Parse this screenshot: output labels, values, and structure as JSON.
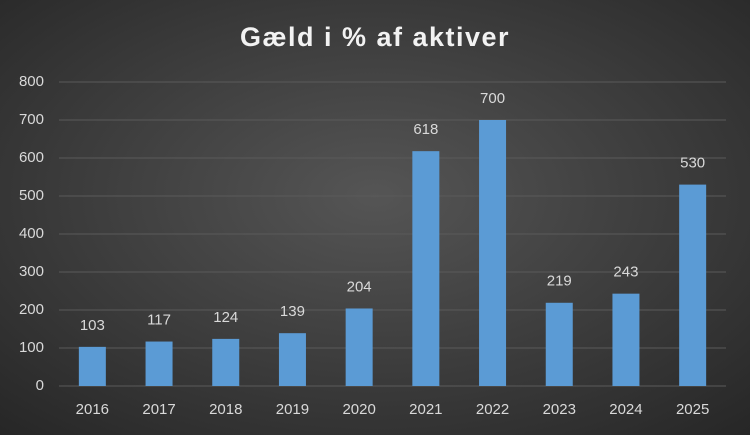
{
  "chart_data": {
    "type": "bar",
    "title": "Gæld i % af aktiver",
    "categories": [
      "2016",
      "2017",
      "2018",
      "2019",
      "2020",
      "2021",
      "2022",
      "2023",
      "2024",
      "2025"
    ],
    "values": [
      103,
      117,
      124,
      139,
      204,
      618,
      700,
      219,
      243,
      530
    ],
    "color": "#5b9bd5",
    "ylim": [
      0,
      800
    ],
    "yticks": [
      0,
      100,
      200,
      300,
      400,
      500,
      600,
      700,
      800
    ],
    "grid": true
  }
}
